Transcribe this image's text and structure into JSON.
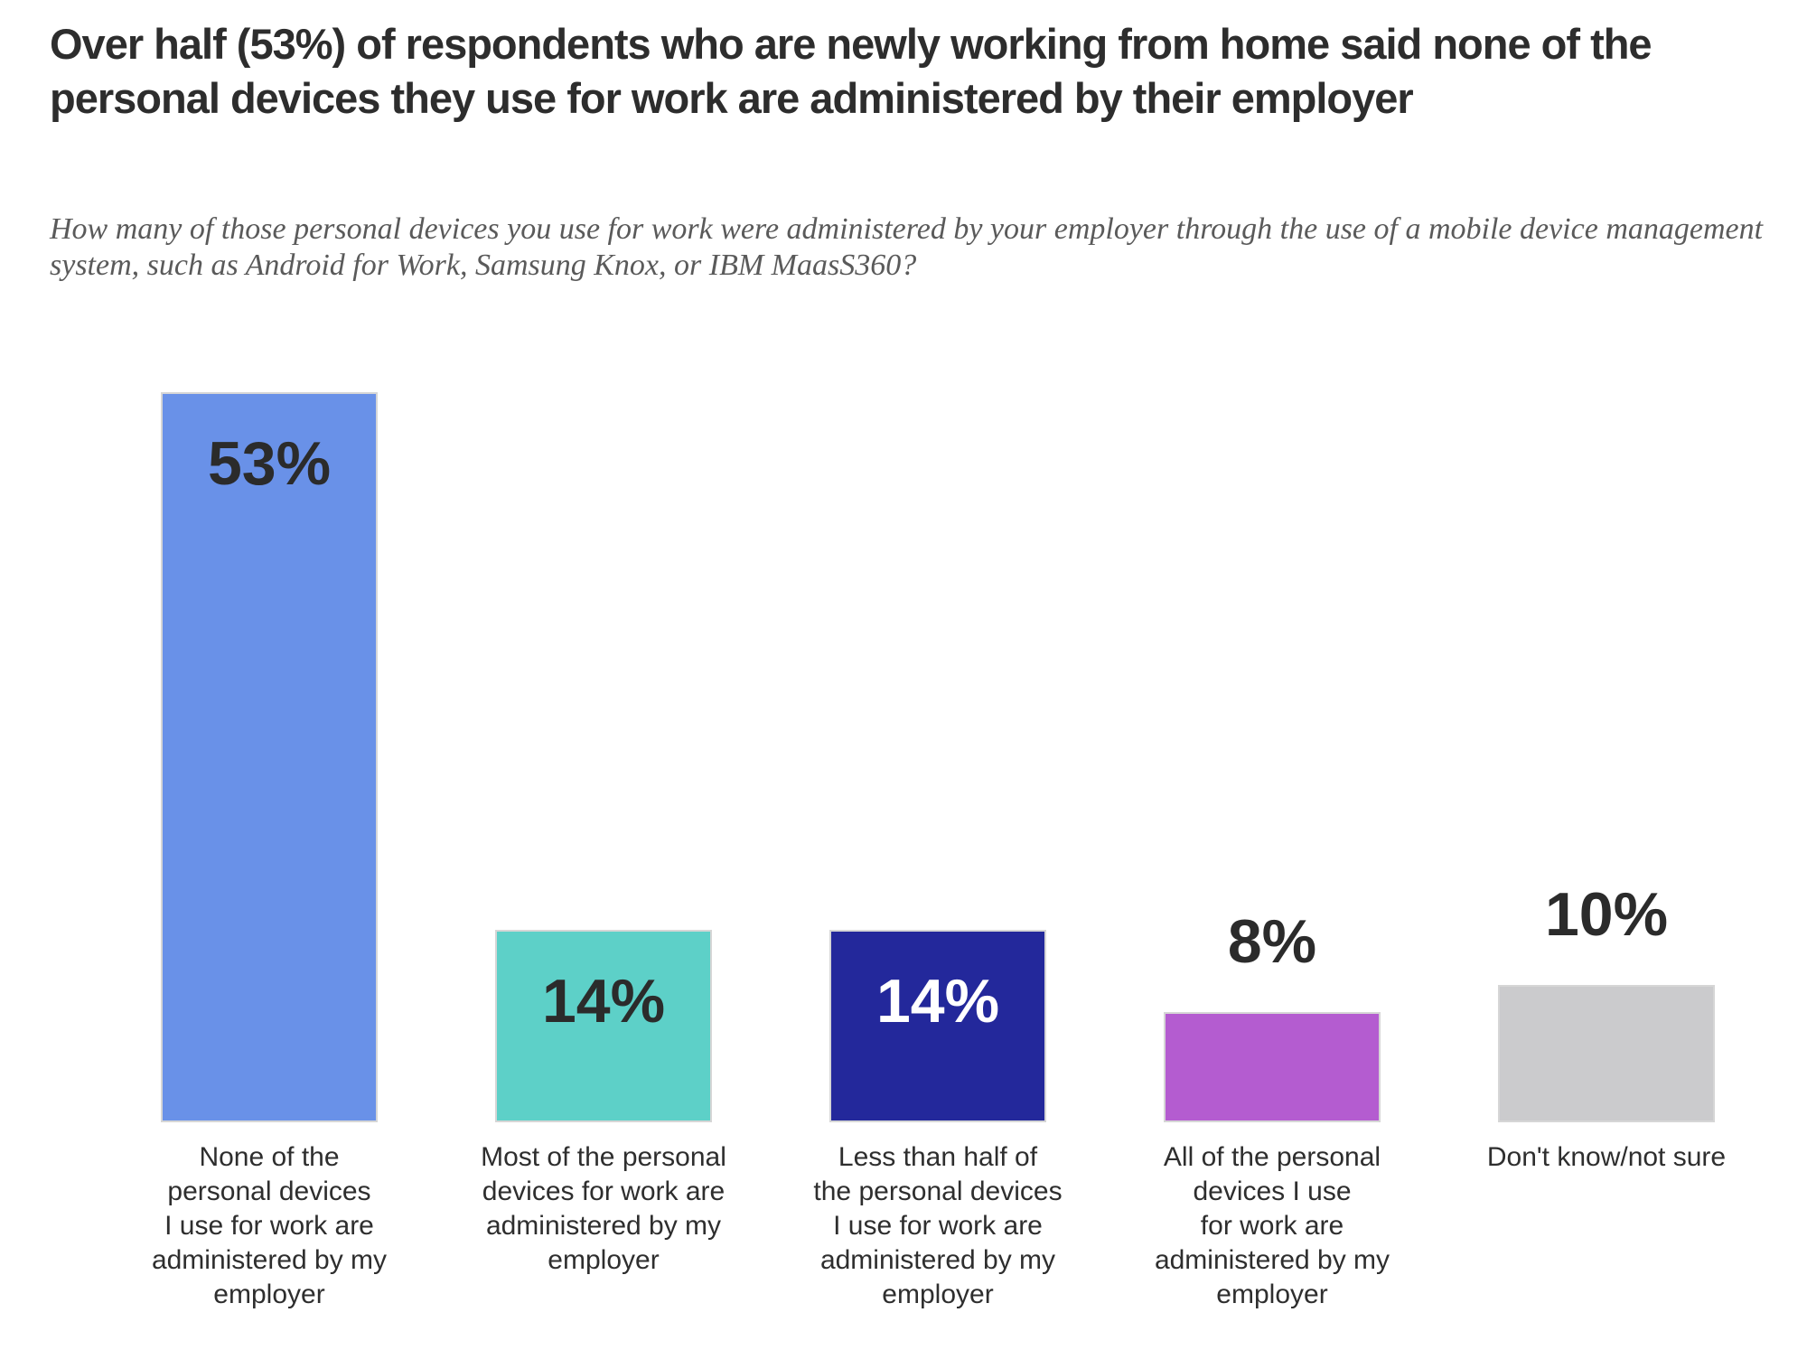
{
  "page": {
    "title": "Over half (53%) of respondents who are newly working from home said none of the personal devices they use for work are administered by their employer",
    "subtitle": "How many of those personal devices you use for work were administered by your employer through the use of a mobile device management system, such as Android for Work, Samsung Knox, or IBM MaasS360?"
  },
  "colors": {
    "background": "#FFFFFF",
    "title_text": "#2D2D2D",
    "subtitle_text": "#5A5A5A",
    "category_text": "#2E2E2E",
    "value_text_dark": "#2B2B2B",
    "value_text_light": "#FFFFFF",
    "bar_border": "#D6D6D6"
  },
  "chart_data": {
    "type": "bar",
    "title": "Over half (53%) of respondents who are newly working from home said none of the personal devices they use for work are administered by their employer",
    "subtitle": "How many of those personal devices you use for work were administered by your employer through the use of a mobile device management system, such as Android for Work, Samsung Knox, or IBM MaasS360?",
    "unit": "%",
    "ylim": [
      0,
      55
    ],
    "grid": false,
    "legend": false,
    "axes_shown": false,
    "value_labels_shown": true,
    "categories": [
      "None of the personal devices I use for work are administered by my employer",
      "Most of the personal devices for work are administered by my employer",
      "Less than half of the personal devices I use for work are administered by my employer",
      "All of the personal devices I use for work are administered by my employer",
      "Don't know/not sure"
    ],
    "values": [
      53,
      14,
      14,
      8,
      10
    ],
    "bars": [
      {
        "category": "None of the personal devices I use for work are administered by my employer",
        "category_lines": [
          "None of the",
          "personal devices",
          "I use for work are",
          "administered by my",
          "employer"
        ],
        "value": 53,
        "value_label": "53%",
        "color": "#6991E8",
        "value_label_position": "inside",
        "value_label_color": "#2B2B2B"
      },
      {
        "category": "Most of the personal devices for work are administered by my employer",
        "category_lines": [
          "Most of the personal",
          "devices for work are",
          "administered by my",
          "employer"
        ],
        "value": 14,
        "value_label": "14%",
        "color": "#5DD0C8",
        "value_label_position": "inside",
        "value_label_color": "#2B2B2B"
      },
      {
        "category": "Less than half of the personal devices I use for work are administered by my employer",
        "category_lines": [
          "Less than half of",
          "the personal devices",
          "I use for work are",
          "administered by my",
          "employer"
        ],
        "value": 14,
        "value_label": "14%",
        "color": "#23289B",
        "value_label_position": "inside",
        "value_label_color": "#FFFFFF"
      },
      {
        "category": "All of the personal devices I use for work are administered by my employer",
        "category_lines": [
          "All of the personal",
          "devices I use",
          "for work are",
          "administered by my",
          "employer"
        ],
        "value": 8,
        "value_label": "8%",
        "color": "#B45CD0",
        "value_label_position": "above",
        "value_label_color": "#2B2B2B"
      },
      {
        "category": "Don't know/not sure",
        "category_lines": [
          "Don't know/not sure"
        ],
        "value": 10,
        "value_label": "10%",
        "color": "#CBCBCD",
        "value_label_position": "above",
        "value_label_color": "#2B2B2B"
      }
    ]
  }
}
